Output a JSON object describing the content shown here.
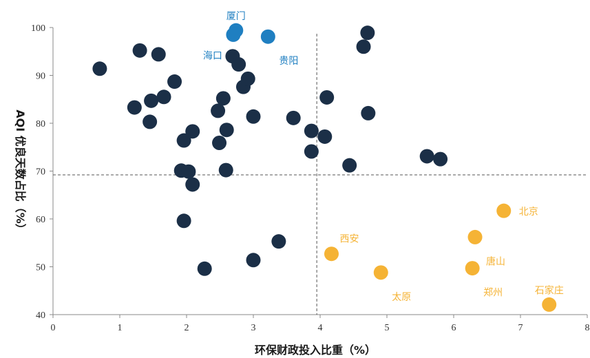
{
  "colors": {
    "default": "#1b2f47",
    "blue": "#1f7fc1",
    "orange": "#f5b335",
    "axis": "#888888",
    "refline": "#555555"
  },
  "chart_data": {
    "type": "scatter",
    "xlabel": "环保财政投入比重（%）",
    "ylabel": "AQI 优良天数占比（%）",
    "xlim": [
      0,
      8
    ],
    "ylim": [
      40,
      100
    ],
    "xticks": [
      0,
      1,
      2,
      3,
      4,
      5,
      6,
      7,
      8
    ],
    "yticks": [
      40,
      50,
      60,
      70,
      80,
      90,
      100
    ],
    "grid": false,
    "reference_lines": {
      "x": 3.95,
      "y": 69.2
    },
    "points": [
      {
        "x": 0.7,
        "y": 91.4,
        "group": "default"
      },
      {
        "x": 1.3,
        "y": 95.2,
        "group": "default"
      },
      {
        "x": 1.58,
        "y": 94.4,
        "group": "default"
      },
      {
        "x": 1.22,
        "y": 83.3,
        "group": "default"
      },
      {
        "x": 1.47,
        "y": 84.7,
        "group": "default"
      },
      {
        "x": 1.45,
        "y": 80.3,
        "group": "default"
      },
      {
        "x": 1.66,
        "y": 85.5,
        "group": "default"
      },
      {
        "x": 1.82,
        "y": 88.7,
        "group": "default"
      },
      {
        "x": 1.96,
        "y": 76.4,
        "group": "default"
      },
      {
        "x": 2.09,
        "y": 78.3,
        "group": "default"
      },
      {
        "x": 1.92,
        "y": 70.1,
        "group": "default"
      },
      {
        "x": 2.03,
        "y": 69.9,
        "group": "default"
      },
      {
        "x": 2.09,
        "y": 67.2,
        "group": "default"
      },
      {
        "x": 1.96,
        "y": 59.6,
        "group": "default"
      },
      {
        "x": 2.27,
        "y": 49.6,
        "group": "default"
      },
      {
        "x": 2.47,
        "y": 82.6,
        "group": "default"
      },
      {
        "x": 2.55,
        "y": 85.2,
        "group": "default"
      },
      {
        "x": 2.6,
        "y": 78.6,
        "group": "default"
      },
      {
        "x": 2.49,
        "y": 75.9,
        "group": "default"
      },
      {
        "x": 2.59,
        "y": 70.2,
        "group": "default"
      },
      {
        "x": 2.69,
        "y": 94.0,
        "group": "default"
      },
      {
        "x": 2.78,
        "y": 92.3,
        "group": "default"
      },
      {
        "x": 2.85,
        "y": 87.6,
        "group": "default"
      },
      {
        "x": 2.92,
        "y": 89.3,
        "group": "default"
      },
      {
        "x": 3.0,
        "y": 81.4,
        "group": "default"
      },
      {
        "x": 3.0,
        "y": 51.4,
        "group": "default"
      },
      {
        "x": 3.38,
        "y": 55.3,
        "group": "default"
      },
      {
        "x": 3.6,
        "y": 81.1,
        "group": "default"
      },
      {
        "x": 3.87,
        "y": 78.4,
        "group": "default"
      },
      {
        "x": 3.87,
        "y": 74.1,
        "group": "default"
      },
      {
        "x": 4.07,
        "y": 77.2,
        "group": "default"
      },
      {
        "x": 4.1,
        "y": 85.4,
        "group": "default"
      },
      {
        "x": 4.44,
        "y": 71.2,
        "group": "default"
      },
      {
        "x": 4.65,
        "y": 96.0,
        "group": "default"
      },
      {
        "x": 4.71,
        "y": 98.9,
        "group": "default"
      },
      {
        "x": 4.72,
        "y": 82.1,
        "group": "default"
      },
      {
        "x": 5.6,
        "y": 73.1,
        "group": "default"
      },
      {
        "x": 5.8,
        "y": 72.5,
        "group": "default"
      },
      {
        "x": 2.74,
        "y": 99.4,
        "group": "blue",
        "label": "厦门",
        "label_pos": "above"
      },
      {
        "x": 2.7,
        "y": 98.5,
        "group": "blue",
        "label": "海口",
        "label_pos": "below-left"
      },
      {
        "x": 3.22,
        "y": 98.1,
        "group": "blue",
        "label": "贵阳",
        "label_pos": "below-right"
      },
      {
        "x": 4.17,
        "y": 52.7,
        "group": "orange",
        "label": "西安",
        "label_pos": "above-right"
      },
      {
        "x": 4.91,
        "y": 48.8,
        "group": "orange",
        "label": "太原",
        "label_pos": "below-right"
      },
      {
        "x": 6.28,
        "y": 49.7,
        "group": "orange",
        "label": "郑州",
        "label_pos": "below-right"
      },
      {
        "x": 6.32,
        "y": 56.2,
        "group": "orange",
        "label": "唐山",
        "label_pos": "below-right"
      },
      {
        "x": 6.75,
        "y": 61.7,
        "group": "orange",
        "label": "北京",
        "label_pos": "right"
      },
      {
        "x": 7.43,
        "y": 42.1,
        "group": "orange",
        "label": "石家庄",
        "label_pos": "above"
      }
    ]
  }
}
